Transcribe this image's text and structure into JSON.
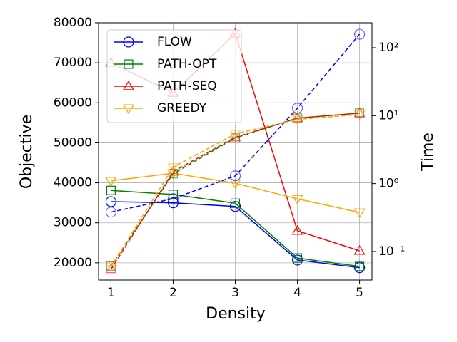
{
  "chart_data": {
    "type": "line",
    "xlabel": "Density",
    "ylabel": "Objective",
    "y2label": "Time",
    "x": [
      1,
      2,
      3,
      4,
      5
    ],
    "xlim": [
      0.8,
      5.2
    ],
    "xticks": [
      1,
      2,
      3,
      4,
      5
    ],
    "ylim": [
      15700,
      80000
    ],
    "yticks": [
      20000,
      30000,
      40000,
      50000,
      60000,
      70000,
      80000
    ],
    "y2lim": [
      0.038,
      233
    ],
    "y2scale": "log",
    "y2ticks": [
      {
        "value": 0.1,
        "label": "10⁻¹"
      },
      {
        "value": 1,
        "label": "10⁰"
      },
      {
        "value": 10,
        "label": "10¹"
      },
      {
        "value": 100,
        "label": "10²"
      }
    ],
    "grid": true,
    "legend": "upper left",
    "series": [
      {
        "name": "FLOW",
        "color": "#0000ff",
        "marker": "circle",
        "linestyle": "solid",
        "values": [
          35300,
          35000,
          34100,
          20700,
          18800
        ]
      },
      {
        "name": "PATH-OPT",
        "color": "#008000",
        "marker": "square",
        "linestyle": "solid",
        "values": [
          38100,
          37100,
          34900,
          21200,
          19100
        ]
      },
      {
        "name": "PATH-SEQ",
        "color": "#ff0000",
        "marker": "triangle-up",
        "linestyle": "solid",
        "values": [
          70000,
          62500,
          77300,
          28000,
          23000
        ]
      },
      {
        "name": "GREEDY",
        "color": "#ffa500",
        "marker": "triangle-down",
        "linestyle": "solid",
        "values": [
          40500,
          42400,
          39900,
          36000,
          32600
        ]
      },
      {
        "color": "#0000ff",
        "marker": "circle",
        "linestyle": "dashed",
        "axis": "y2",
        "values": [
          0.38,
          0.6,
          1.3,
          12.9,
          158
        ]
      },
      {
        "color": "#008000",
        "marker": "square",
        "linestyle": "dashed",
        "axis": "y2",
        "values": [
          0.061,
          1.4,
          4.7,
          9.2,
          10.9
        ]
      },
      {
        "color": "#ff0000",
        "marker": "triangle-up",
        "linestyle": "dashed",
        "axis": "y2",
        "values": [
          0.055,
          1.5,
          4.8,
          9.2,
          10.9
        ]
      },
      {
        "color": "#ffa500",
        "marker": "triangle-down",
        "linestyle": "dashed",
        "axis": "y2",
        "values": [
          0.06,
          1.74,
          5.4,
          8.8,
          10.4
        ]
      }
    ]
  }
}
